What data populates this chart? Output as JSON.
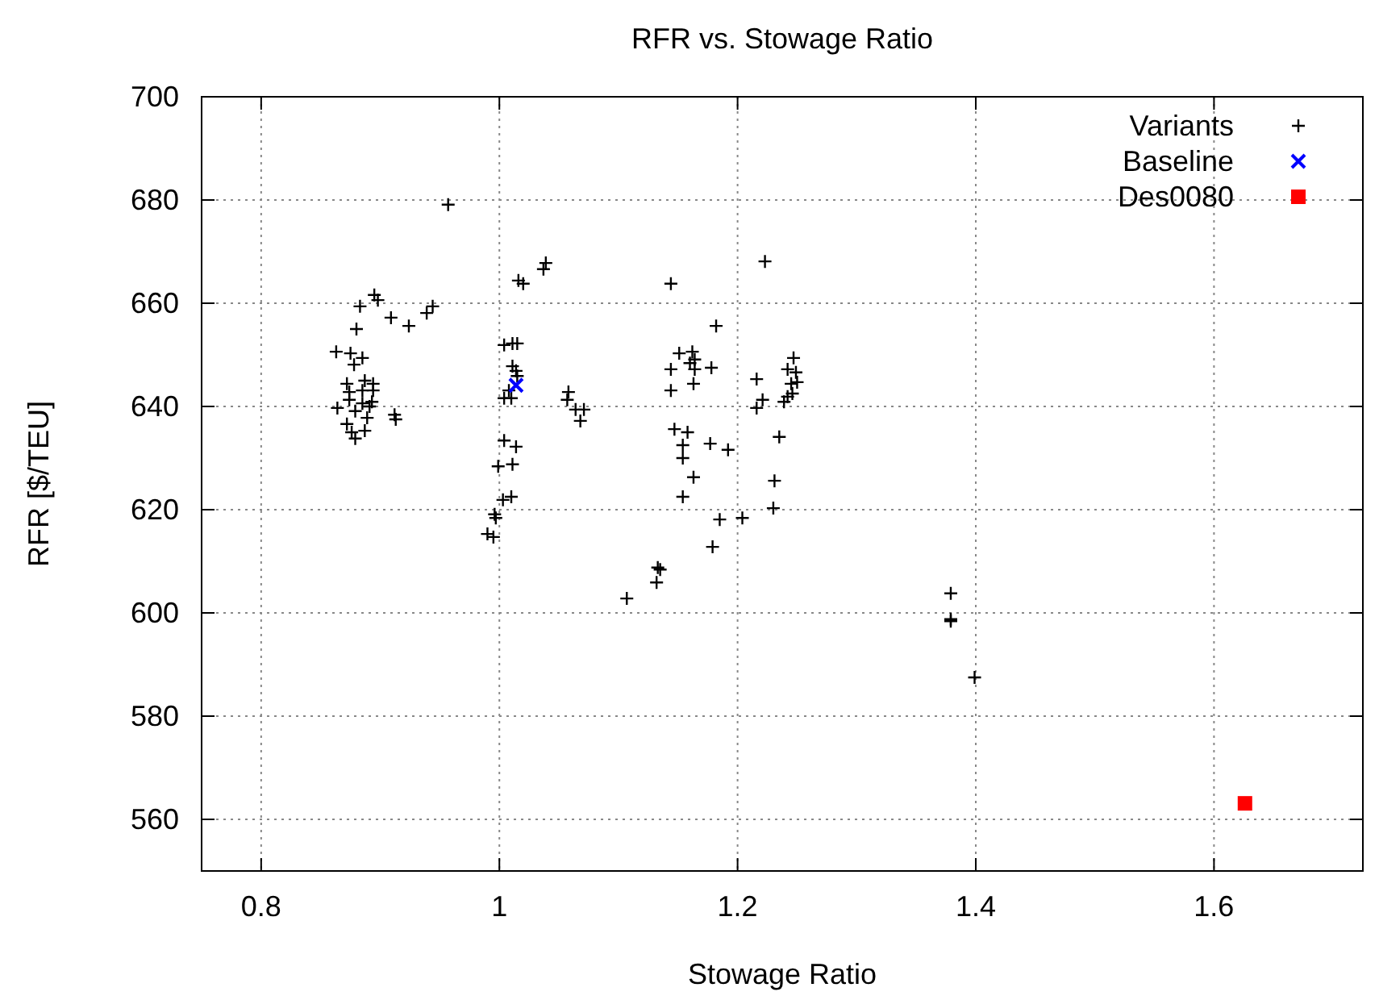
{
  "chart_data": {
    "type": "scatter",
    "title": "RFR vs. Stowage Ratio",
    "xlabel": "Stowage Ratio",
    "ylabel": "RFR [$/TEU]",
    "xlim": [
      0.75,
      1.725
    ],
    "xticks": [
      0.8,
      1,
      1.2,
      1.4,
      1.6
    ],
    "ylim": [
      550,
      700
    ],
    "yticks": [
      560,
      580,
      600,
      620,
      640,
      660,
      680,
      700
    ],
    "grid": true,
    "legend": "top right",
    "series": [
      {
        "name": "Variants",
        "color": "#000000",
        "marker": "cross",
        "x": [
          0.957,
          0.895,
          0.898,
          0.883,
          0.909,
          0.924,
          0.939,
          0.944,
          0.88,
          0.863,
          0.875,
          0.885,
          0.878,
          0.872,
          0.887,
          0.894,
          0.874,
          0.885,
          0.894,
          0.874,
          0.885,
          0.893,
          0.864,
          0.879,
          0.891,
          0.889,
          0.912,
          0.913,
          0.872,
          0.876,
          0.879,
          0.887,
          1.039,
          1.037,
          1.016,
          1.02,
          1.004,
          1.015,
          1.011,
          1.011,
          1.014,
          1.015,
          1.008,
          1.004,
          1.01,
          1.058,
          1.057,
          1.064,
          1.071,
          1.068,
          1.004,
          1.014,
          0.999,
          1.011,
          1.003,
          1.01,
          0.996,
          0.997,
          0.99,
          0.995,
          1.223,
          1.144,
          1.182,
          1.151,
          1.162,
          1.16,
          1.164,
          1.164,
          1.144,
          1.178,
          1.163,
          1.144,
          1.247,
          1.242,
          1.249,
          1.25,
          1.245,
          1.216,
          1.246,
          1.242,
          1.221,
          1.216,
          1.239,
          1.147,
          1.158,
          1.154,
          1.154,
          1.177,
          1.192,
          1.235,
          1.163,
          1.154,
          1.231,
          1.23,
          1.185,
          1.204,
          1.179,
          1.133,
          1.135,
          1.132,
          1.107,
          1.379,
          1.379,
          1.379,
          1.399
        ],
        "values": [
          679.1,
          661.6,
          660.6,
          659.4,
          657.2,
          655.6,
          658.1,
          659.4,
          655.0,
          650.6,
          650.3,
          649.4,
          648.1,
          644.4,
          645.0,
          644.4,
          642.8,
          643.1,
          643.1,
          641.3,
          640.6,
          640.9,
          639.7,
          639.1,
          640.0,
          637.8,
          638.4,
          637.5,
          636.6,
          635.0,
          633.8,
          635.3,
          667.8,
          666.6,
          664.4,
          663.8,
          651.9,
          652.2,
          652.2,
          647.8,
          646.9,
          645.9,
          643.1,
          641.6,
          641.6,
          642.8,
          641.3,
          639.4,
          639.4,
          637.2,
          633.4,
          632.2,
          628.4,
          628.8,
          621.9,
          622.5,
          619.1,
          618.4,
          615.3,
          614.7,
          668.1,
          663.8,
          655.6,
          650.3,
          650.6,
          648.4,
          649.1,
          647.2,
          647.2,
          647.5,
          644.4,
          643.1,
          649.4,
          647.2,
          646.6,
          644.7,
          644.4,
          645.3,
          642.5,
          641.9,
          641.3,
          639.7,
          640.9,
          635.6,
          635.0,
          632.5,
          630.0,
          632.8,
          631.6,
          634.1,
          626.3,
          622.5,
          625.6,
          620.3,
          618.1,
          618.4,
          612.8,
          608.8,
          608.4,
          605.9,
          602.8,
          603.8,
          598.8,
          598.4,
          587.5
        ]
      },
      {
        "name": "Baseline",
        "color": "#0000ff",
        "marker": "x",
        "x": [
          1.014
        ],
        "values": [
          644.1
        ]
      },
      {
        "name": "Des0080",
        "color": "#ff0000",
        "marker": "square",
        "x": [
          1.626
        ],
        "values": [
          563.1
        ]
      }
    ]
  }
}
